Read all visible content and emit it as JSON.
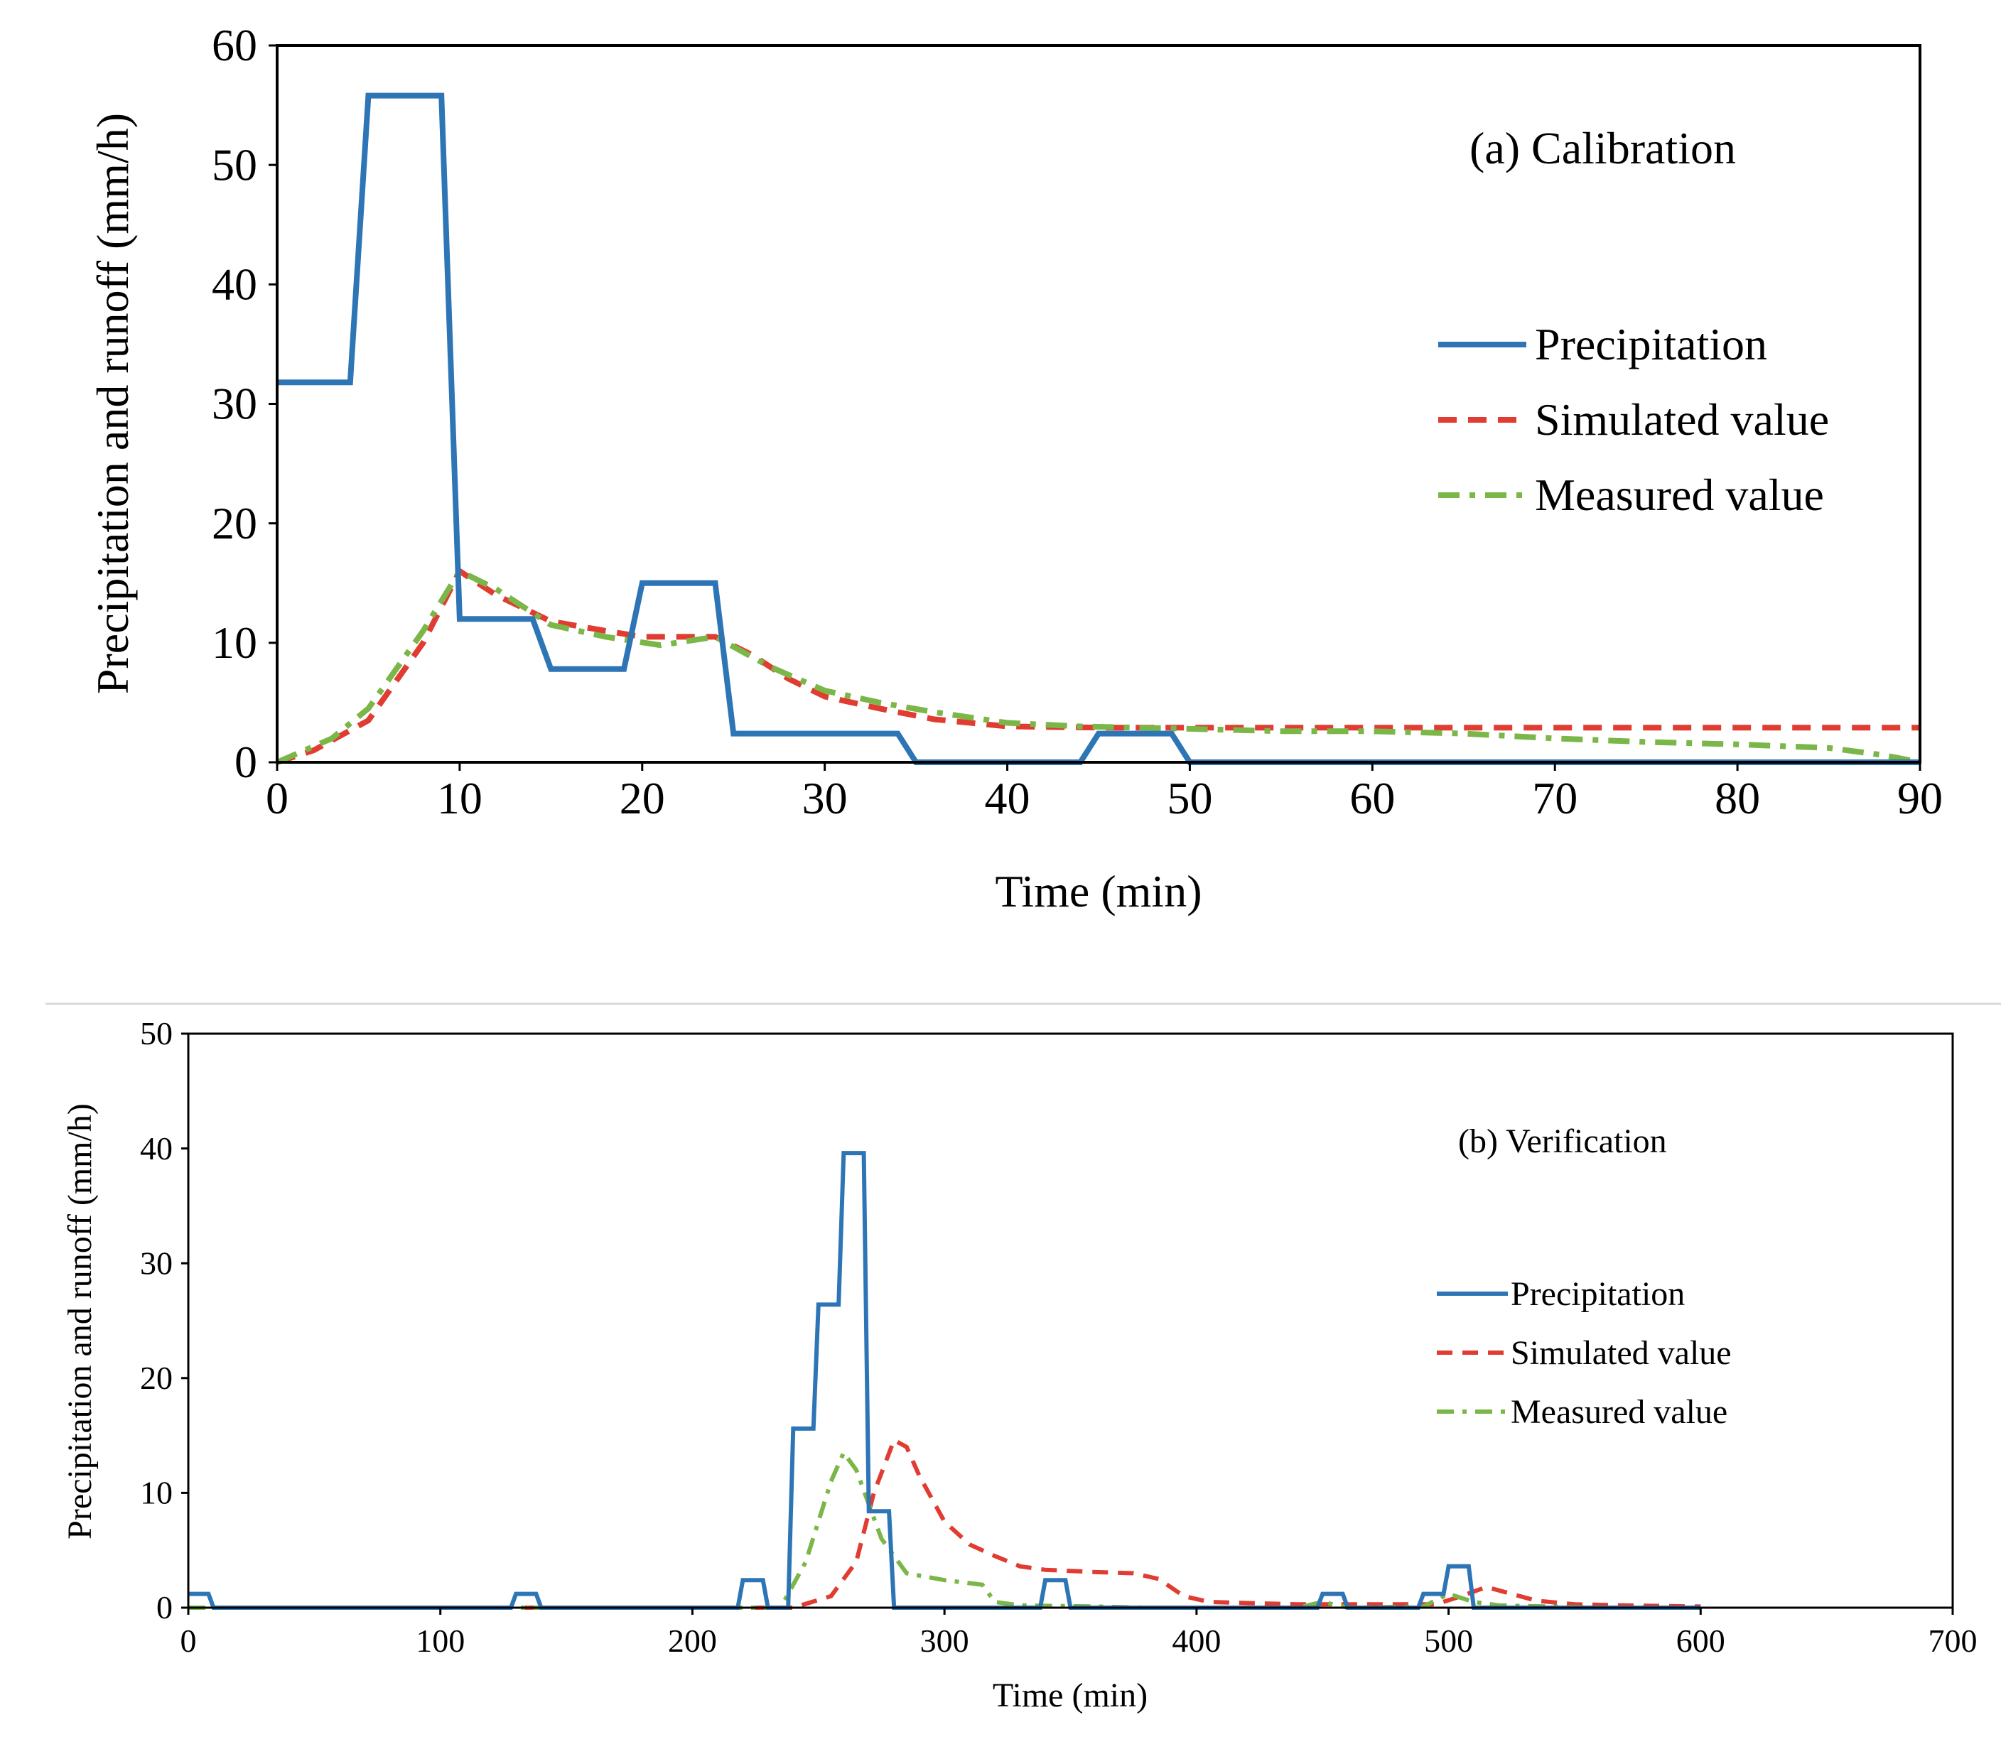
{
  "chart_data": [
    {
      "id": "a",
      "type": "line",
      "title": "(a) Calibration",
      "xlabel": "Time (min)",
      "ylabel": "Precipitation and runoff (mm/h)",
      "xlim": [
        0,
        90
      ],
      "ylim": [
        0,
        60
      ],
      "xticks": [
        0,
        10,
        20,
        30,
        40,
        50,
        60,
        70,
        80,
        90
      ],
      "yticks": [
        0,
        10,
        20,
        30,
        40,
        50,
        60
      ],
      "legend_position": "right",
      "series": [
        {
          "name": "Precipitation",
          "style": "solid",
          "color": "#2e75b6",
          "points": [
            [
              0,
              31.8
            ],
            [
              4,
              31.8
            ],
            [
              5,
              55.8
            ],
            [
              9,
              55.8
            ],
            [
              10,
              12
            ],
            [
              14,
              12
            ],
            [
              15,
              7.8
            ],
            [
              19,
              7.8
            ],
            [
              20,
              15
            ],
            [
              24,
              15
            ],
            [
              25,
              2.4
            ],
            [
              34,
              2.4
            ],
            [
              35,
              0
            ],
            [
              44,
              0
            ],
            [
              45,
              2.4
            ],
            [
              49,
              2.4
            ],
            [
              50,
              0
            ],
            [
              90,
              0
            ]
          ]
        },
        {
          "name": "Simulated value",
          "style": "dashed",
          "color": "#e03c31",
          "points": [
            [
              0,
              0
            ],
            [
              2,
              1
            ],
            [
              5,
              3.5
            ],
            [
              8,
              10
            ],
            [
              10,
              16
            ],
            [
              12,
              14
            ],
            [
              15,
              11.8
            ],
            [
              18,
              11
            ],
            [
              20,
              10.5
            ],
            [
              22,
              10.5
            ],
            [
              24,
              10.5
            ],
            [
              26,
              9
            ],
            [
              28,
              7
            ],
            [
              30,
              5.5
            ],
            [
              33,
              4.5
            ],
            [
              36,
              3.6
            ],
            [
              40,
              3
            ],
            [
              45,
              2.9
            ],
            [
              50,
              2.9
            ],
            [
              60,
              2.9
            ],
            [
              70,
              2.9
            ],
            [
              80,
              2.9
            ],
            [
              90,
              2.9
            ]
          ]
        },
        {
          "name": "Measured value",
          "style": "dashdot",
          "color": "#7ab648",
          "points": [
            [
              0,
              0
            ],
            [
              3,
              2
            ],
            [
              5,
              4.5
            ],
            [
              8,
              11
            ],
            [
              10,
              16
            ],
            [
              12,
              14.5
            ],
            [
              15,
              11.5
            ],
            [
              18,
              10.5
            ],
            [
              21,
              9.8
            ],
            [
              24,
              10.5
            ],
            [
              27,
              8
            ],
            [
              30,
              6
            ],
            [
              33,
              5
            ],
            [
              36,
              4.2
            ],
            [
              40,
              3.3
            ],
            [
              44,
              3
            ],
            [
              50,
              2.8
            ],
            [
              55,
              2.6
            ],
            [
              60,
              2.6
            ],
            [
              65,
              2.4
            ],
            [
              70,
              2
            ],
            [
              75,
              1.7
            ],
            [
              80,
              1.5
            ],
            [
              85,
              1.2
            ],
            [
              88,
              0.6
            ],
            [
              90,
              0
            ]
          ]
        }
      ]
    },
    {
      "id": "b",
      "type": "line",
      "title": "(b) Verification",
      "xlabel": "Time (min)",
      "ylabel": "Precipitation  and runoff (mm/h)",
      "xlim": [
        0,
        700
      ],
      "ylim": [
        0,
        50
      ],
      "xticks": [
        0,
        100,
        200,
        300,
        400,
        500,
        600,
        700
      ],
      "yticks": [
        0,
        10,
        20,
        30,
        40,
        50
      ],
      "legend_position": "right",
      "series": [
        {
          "name": "Precipitation",
          "style": "solid",
          "color": "#2e75b6",
          "points": [
            [
              0,
              1.2
            ],
            [
              8,
              1.2
            ],
            [
              10,
              0
            ],
            [
              128,
              0
            ],
            [
              130,
              1.2
            ],
            [
              138,
              1.2
            ],
            [
              140,
              0
            ],
            [
              218,
              0
            ],
            [
              220,
              2.4
            ],
            [
              228,
              2.4
            ],
            [
              230,
              0
            ],
            [
              238,
              0
            ],
            [
              240,
              15.6
            ],
            [
              248,
              15.6
            ],
            [
              250,
              26.4
            ],
            [
              258,
              26.4
            ],
            [
              260,
              39.6
            ],
            [
              268,
              39.6
            ],
            [
              270,
              8.4
            ],
            [
              278,
              8.4
            ],
            [
              280,
              0
            ],
            [
              338,
              0
            ],
            [
              340,
              2.4
            ],
            [
              348,
              2.4
            ],
            [
              350,
              0
            ],
            [
              448,
              0
            ],
            [
              450,
              1.2
            ],
            [
              458,
              1.2
            ],
            [
              460,
              0
            ],
            [
              488,
              0
            ],
            [
              490,
              1.2
            ],
            [
              498,
              1.2
            ],
            [
              500,
              3.6
            ],
            [
              508,
              3.6
            ],
            [
              510,
              0
            ],
            [
              600,
              0
            ]
          ]
        },
        {
          "name": "Simulated value",
          "style": "dashed",
          "color": "#e03c31",
          "points": [
            [
              0,
              0
            ],
            [
              240,
              0
            ],
            [
              255,
              1
            ],
            [
              265,
              4
            ],
            [
              272,
              10
            ],
            [
              280,
              14.6
            ],
            [
              285,
              14
            ],
            [
              290,
              11.5
            ],
            [
              300,
              7.5
            ],
            [
              310,
              5.5
            ],
            [
              320,
              4.5
            ],
            [
              330,
              3.6
            ],
            [
              340,
              3.3
            ],
            [
              350,
              3.2
            ],
            [
              360,
              3.1
            ],
            [
              375,
              3
            ],
            [
              385,
              2.5
            ],
            [
              395,
              1
            ],
            [
              405,
              0.5
            ],
            [
              420,
              0.4
            ],
            [
              440,
              0.3
            ],
            [
              460,
              0.3
            ],
            [
              480,
              0.3
            ],
            [
              495,
              0.3
            ],
            [
              505,
              1
            ],
            [
              515,
              1.8
            ],
            [
              525,
              1.2
            ],
            [
              535,
              0.6
            ],
            [
              550,
              0.3
            ],
            [
              570,
              0.2
            ],
            [
              600,
              0.1
            ]
          ]
        },
        {
          "name": "Measured value",
          "style": "dashdot",
          "color": "#7ab648",
          "points": [
            [
              0,
              0
            ],
            [
              235,
              0
            ],
            [
              245,
              4
            ],
            [
              255,
              11
            ],
            [
              260,
              13.5
            ],
            [
              265,
              12
            ],
            [
              275,
              6
            ],
            [
              285,
              3
            ],
            [
              300,
              2.4
            ],
            [
              315,
              2
            ],
            [
              320,
              0.5
            ],
            [
              330,
              0.2
            ],
            [
              360,
              0.1
            ],
            [
              380,
              0
            ],
            [
              440,
              0
            ],
            [
              450,
              0.5
            ],
            [
              460,
              0
            ],
            [
              490,
              0.1
            ],
            [
              500,
              1.2
            ],
            [
              510,
              0.5
            ],
            [
              520,
              0.2
            ],
            [
              560,
              0
            ],
            [
              600,
              0
            ]
          ]
        }
      ]
    }
  ]
}
